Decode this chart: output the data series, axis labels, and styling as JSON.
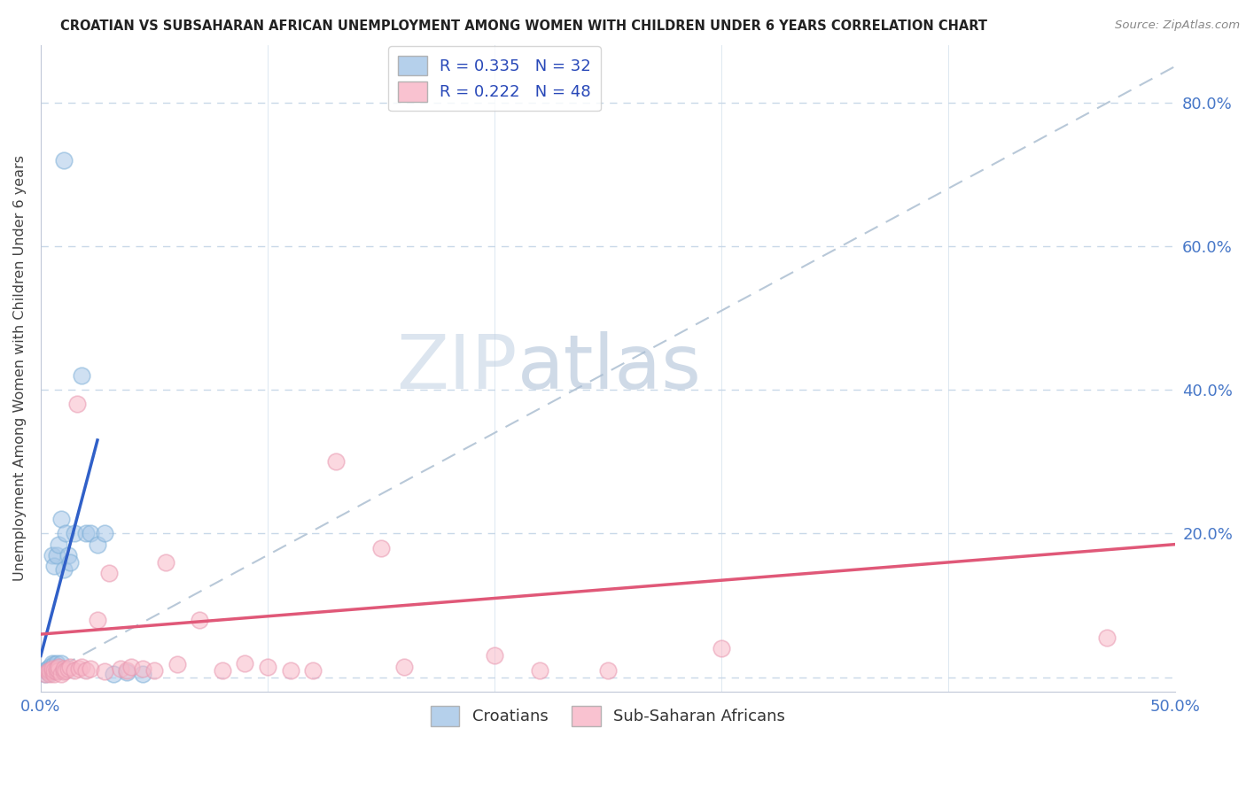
{
  "title": "CROATIAN VS SUBSAHARAN AFRICAN UNEMPLOYMENT AMONG WOMEN WITH CHILDREN UNDER 6 YEARS CORRELATION CHART",
  "source": "Source: ZipAtlas.com",
  "ylabel": "Unemployment Among Women with Children Under 6 years",
  "xlim": [
    0.0,
    0.5
  ],
  "ylim": [
    -0.02,
    0.88
  ],
  "croatians_color": "#a8c8e8",
  "croatians_edge": "#7eb0d8",
  "subsaharan_color": "#f8b8c8",
  "subsaharan_edge": "#e898b0",
  "trendline_croatian_color": "#3060c8",
  "trendline_subsaharan_color": "#e05878",
  "diagonal_color": "#b8c8d8",
  "background_color": "#ffffff",
  "grid_color": "#c8d8e8",
  "legend_r_croatian": "R = 0.335",
  "legend_n_croatian": "N = 32",
  "legend_r_subsaharan": "R = 0.222",
  "legend_n_subsaharan": "N = 48",
  "watermark_zip_color": "#c8d8e8",
  "watermark_atlas_color": "#a8c0d8",
  "cr_x": [
    0.002,
    0.002,
    0.003,
    0.003,
    0.004,
    0.004,
    0.004,
    0.005,
    0.005,
    0.005,
    0.005,
    0.006,
    0.006,
    0.007,
    0.007,
    0.008,
    0.009,
    0.009,
    0.01,
    0.01,
    0.011,
    0.012,
    0.013,
    0.015,
    0.018,
    0.02,
    0.022,
    0.025,
    0.028,
    0.032,
    0.038,
    0.045
  ],
  "cr_y": [
    0.005,
    0.01,
    0.008,
    0.012,
    0.006,
    0.01,
    0.015,
    0.008,
    0.015,
    0.02,
    0.17,
    0.018,
    0.155,
    0.02,
    0.17,
    0.185,
    0.02,
    0.22,
    0.15,
    0.72,
    0.2,
    0.17,
    0.16,
    0.2,
    0.42,
    0.2,
    0.2,
    0.185,
    0.2,
    0.005,
    0.007,
    0.005
  ],
  "ss_x": [
    0.002,
    0.003,
    0.004,
    0.004,
    0.005,
    0.005,
    0.006,
    0.006,
    0.007,
    0.007,
    0.008,
    0.008,
    0.009,
    0.01,
    0.01,
    0.011,
    0.012,
    0.013,
    0.015,
    0.016,
    0.017,
    0.018,
    0.02,
    0.022,
    0.025,
    0.028,
    0.03,
    0.035,
    0.038,
    0.04,
    0.045,
    0.05,
    0.055,
    0.06,
    0.07,
    0.08,
    0.09,
    0.1,
    0.11,
    0.12,
    0.13,
    0.15,
    0.16,
    0.2,
    0.22,
    0.25,
    0.3,
    0.47
  ],
  "ss_y": [
    0.005,
    0.008,
    0.005,
    0.01,
    0.008,
    0.012,
    0.005,
    0.01,
    0.008,
    0.012,
    0.01,
    0.015,
    0.005,
    0.008,
    0.012,
    0.01,
    0.012,
    0.015,
    0.01,
    0.38,
    0.012,
    0.015,
    0.01,
    0.012,
    0.08,
    0.008,
    0.145,
    0.012,
    0.01,
    0.015,
    0.012,
    0.01,
    0.16,
    0.018,
    0.08,
    0.01,
    0.02,
    0.015,
    0.01,
    0.01,
    0.3,
    0.18,
    0.015,
    0.03,
    0.01,
    0.01,
    0.04,
    0.055
  ],
  "cr_trend_x": [
    0.0,
    0.025
  ],
  "cr_trend_y": [
    0.03,
    0.33
  ],
  "ss_trend_x": [
    0.0,
    0.5
  ],
  "ss_trend_y": [
    0.06,
    0.185
  ]
}
